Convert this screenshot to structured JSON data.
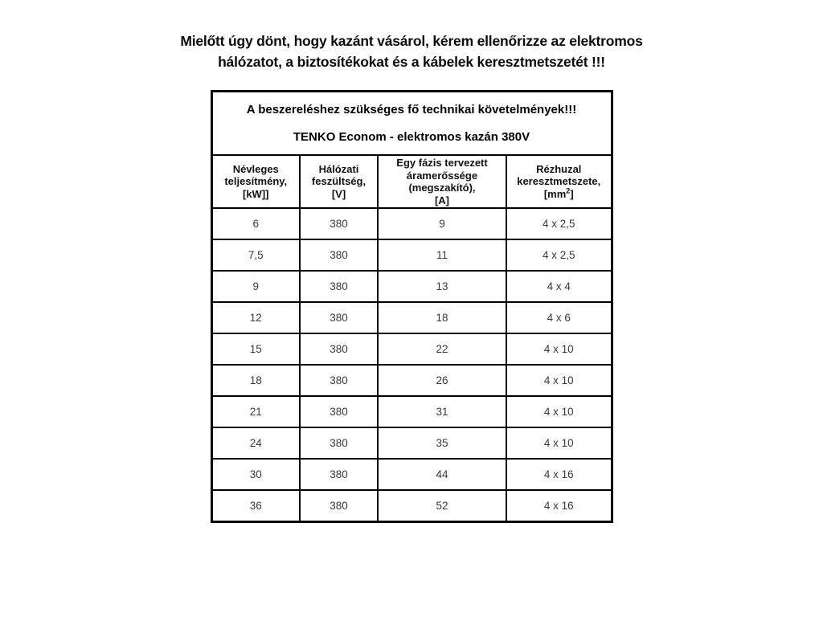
{
  "colors": {
    "background": "#ffffff",
    "text": "#000000",
    "border": "#000000"
  },
  "heading": {
    "line1": "Mielőtt úgy dönt, hogy kazánt vásárol, kérem ellenőrizze az elektromos",
    "line2": "hálózatot, a biztosítékokat és a kábelek keresztmetszetét !!!"
  },
  "table": {
    "title_line1": "A beszereléshez szükséges fő technikai követelmények!!!",
    "title_line2": "TENKO Econom - elektromos kazán 380V",
    "columns": [
      {
        "name": "nominal-power",
        "lines": [
          "Névleges",
          "teljesítmény,",
          "[kW]]"
        ]
      },
      {
        "name": "mains-voltage",
        "lines": [
          "Hálózati",
          "feszültség,",
          "[V]"
        ]
      },
      {
        "name": "phase-current",
        "lines": [
          "Egy fázis tervezett",
          "áramerőssége",
          "(megszakító),",
          "[A]"
        ]
      },
      {
        "name": "copper-wire-cross-section",
        "lines": [
          "Rézhuzal",
          "keresztmetszete,"
        ],
        "unit_pre": "[mm",
        "unit_sup": "2",
        "unit_post": "]"
      }
    ],
    "rows": [
      [
        "6",
        "380",
        "9",
        "4 x 2,5"
      ],
      [
        "7,5",
        "380",
        "11",
        "4 x 2,5"
      ],
      [
        "9",
        "380",
        "13",
        "4 x 4"
      ],
      [
        "12",
        "380",
        "18",
        "4 x 6"
      ],
      [
        "15",
        "380",
        "22",
        "4 x 10"
      ],
      [
        "18",
        "380",
        "26",
        "4 x 10"
      ],
      [
        "21",
        "380",
        "31",
        "4 x 10"
      ],
      [
        "24",
        "380",
        "35",
        "4 x 10"
      ],
      [
        "30",
        "380",
        "44",
        "4 x 16"
      ],
      [
        "36",
        "380",
        "52",
        "4 x 16"
      ]
    ]
  }
}
